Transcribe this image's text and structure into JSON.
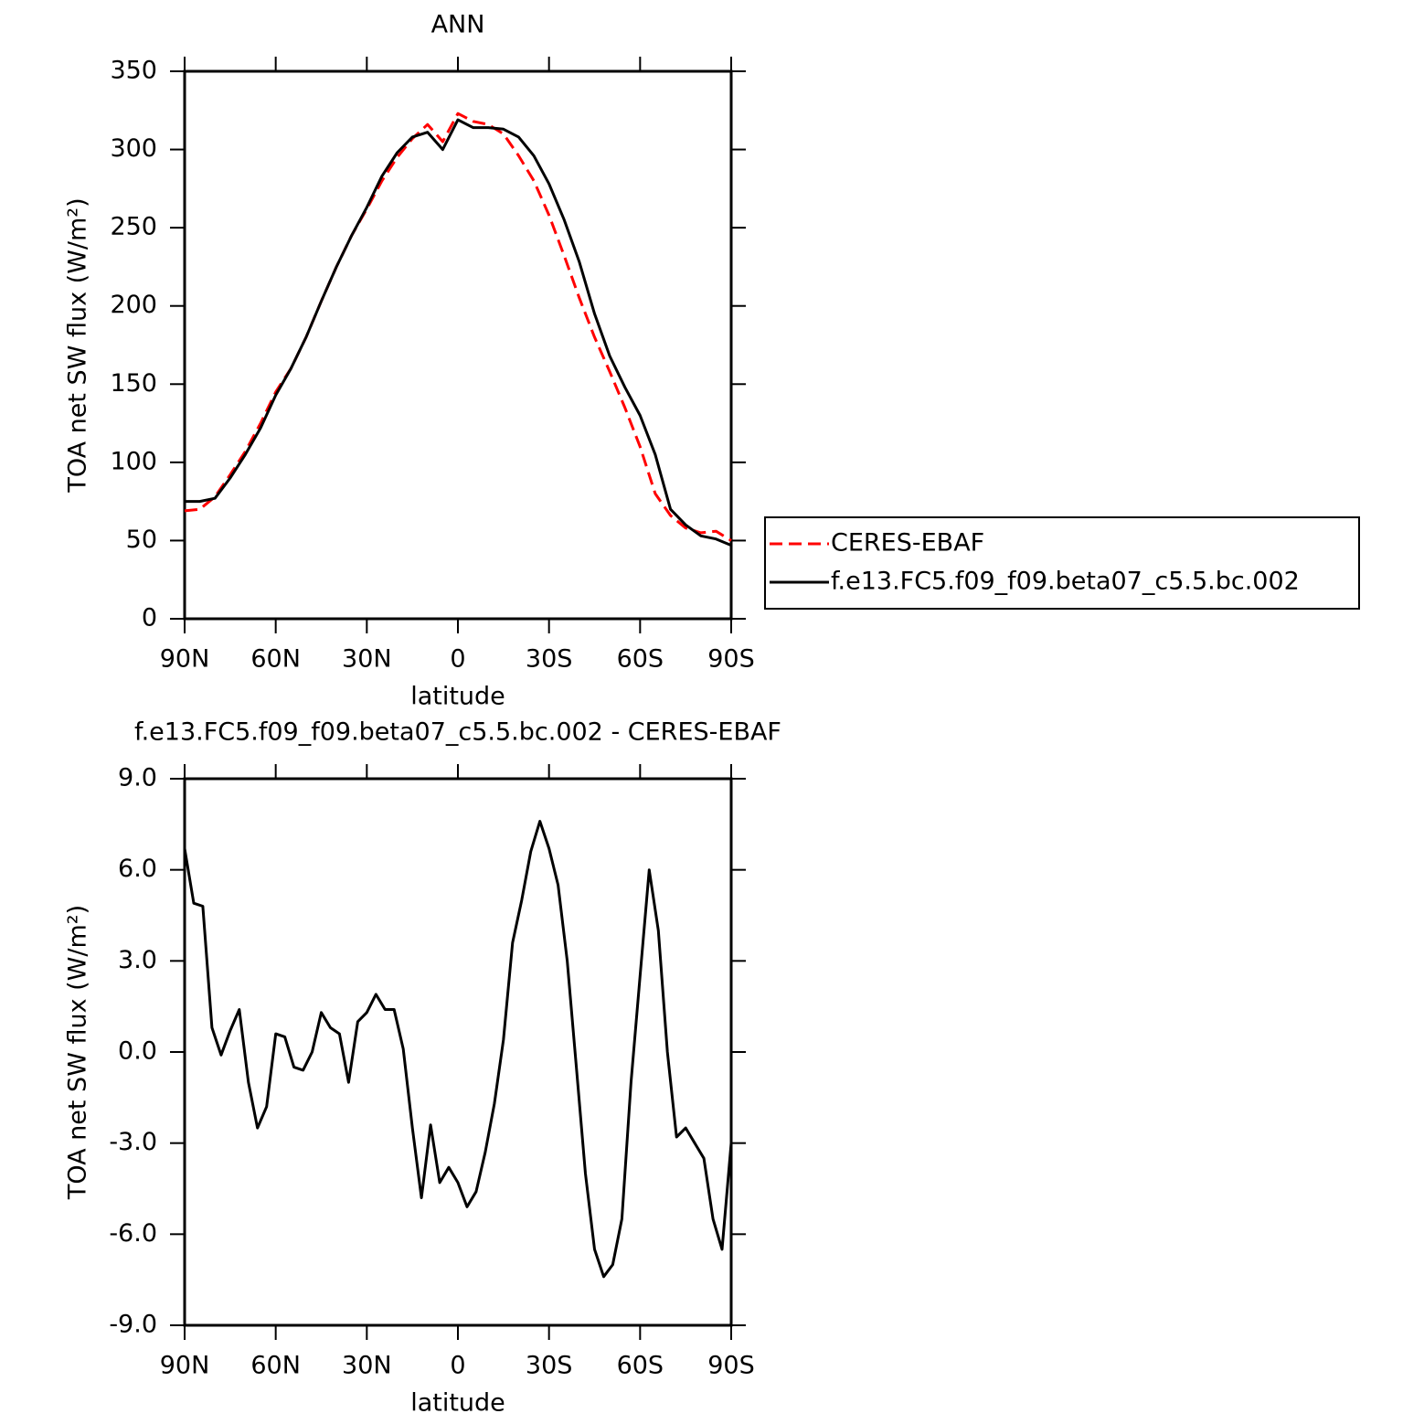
{
  "chart_data": [
    {
      "type": "line",
      "title": "ANN",
      "xlabel": "latitude",
      "ylabel": "TOA net SW flux (W/m²)",
      "x": [
        90,
        85,
        80,
        75,
        70,
        65,
        60,
        55,
        50,
        45,
        40,
        35,
        30,
        25,
        20,
        15,
        10,
        5,
        0,
        -5,
        -10,
        -15,
        -20,
        -25,
        -30,
        -35,
        -40,
        -45,
        -50,
        -55,
        -60,
        -65,
        -70,
        -75,
        -80,
        -85,
        -90
      ],
      "series": [
        {
          "name": "CERES-EBAF",
          "color": "#ff0000",
          "linestyle": "dashed",
          "values": [
            69,
            70,
            78,
            92,
            107,
            125,
            145,
            160,
            180,
            203,
            225,
            245,
            262,
            280,
            295,
            307,
            316,
            305,
            323,
            318,
            316,
            310,
            296,
            280,
            258,
            232,
            205,
            180,
            158,
            135,
            110,
            80,
            66,
            58,
            55,
            56,
            50
          ]
        },
        {
          "name": "f.e13.FC5.f09_f09.beta07_c5.5.bc.002",
          "color": "#000000",
          "linestyle": "solid",
          "values": [
            75,
            75,
            77,
            90,
            105,
            122,
            143,
            160,
            180,
            203,
            225,
            245,
            263,
            283,
            298,
            308,
            311,
            300,
            319,
            314,
            314,
            313,
            308,
            296,
            278,
            255,
            228,
            195,
            168,
            148,
            130,
            105,
            70,
            60,
            53,
            51,
            47
          ]
        }
      ],
      "xlim": [
        90,
        -90
      ],
      "xticks": [
        {
          "value": 90,
          "label": "90N"
        },
        {
          "value": 60,
          "label": "60N"
        },
        {
          "value": 30,
          "label": "30N"
        },
        0,
        {
          "value": -30,
          "label": "30S"
        },
        {
          "value": -60,
          "label": "60S"
        },
        {
          "value": -90,
          "label": "90S"
        }
      ],
      "ylim": [
        0,
        350
      ],
      "yticks": [
        0,
        50,
        100,
        150,
        200,
        250,
        300,
        350
      ],
      "legend": "right"
    },
    {
      "type": "line",
      "title": "f.e13.FC5.f09_f09.beta07_c5.5.bc.002 - CERES-EBAF",
      "xlabel": "latitude",
      "ylabel": "TOA net SW flux (W/m²)",
      "x": [
        90,
        87,
        84,
        81,
        78,
        75,
        72,
        69,
        66,
        63,
        60,
        57,
        54,
        51,
        48,
        45,
        42,
        39,
        36,
        33,
        30,
        27,
        24,
        21,
        18,
        15,
        12,
        9,
        6,
        3,
        0,
        -3,
        -6,
        -9,
        -12,
        -15,
        -18,
        -21,
        -24,
        -27,
        -30,
        -33,
        -36,
        -39,
        -42,
        -45,
        -48,
        -51,
        -54,
        -57,
        -60,
        -63,
        -66,
        -69,
        -72,
        -75,
        -78,
        -81,
        -84,
        -87,
        -90
      ],
      "series": [
        {
          "color": "#000000",
          "linestyle": "solid",
          "values": [
            6.7,
            4.9,
            4.8,
            0.8,
            -0.1,
            0.7,
            1.4,
            -1.0,
            -2.5,
            -1.8,
            0.6,
            0.5,
            -0.5,
            -0.6,
            0.0,
            1.3,
            0.8,
            0.6,
            -1.0,
            1.0,
            1.3,
            1.9,
            1.4,
            1.4,
            0.1,
            -2.5,
            -4.8,
            -2.4,
            -4.3,
            -3.8,
            -4.3,
            -5.1,
            -4.6,
            -3.3,
            -1.7,
            0.4,
            3.6,
            5.0,
            6.6,
            7.6,
            6.7,
            5.5,
            3.0,
            -0.5,
            -4.0,
            -6.5,
            -7.4,
            -7.0,
            -5.5,
            -1.0,
            2.5,
            6.0,
            4.0,
            0.0,
            -2.8,
            -2.5,
            -3.0,
            -3.5,
            -5.5,
            -6.5,
            -3.0
          ]
        }
      ],
      "xlim": [
        90,
        -90
      ],
      "xticks": [
        {
          "value": 90,
          "label": "90N"
        },
        {
          "value": 60,
          "label": "60N"
        },
        {
          "value": 30,
          "label": "30N"
        },
        0,
        {
          "value": -30,
          "label": "30S"
        },
        {
          "value": -60,
          "label": "60S"
        },
        {
          "value": -90,
          "label": "90S"
        }
      ],
      "ylim": [
        -9,
        9
      ],
      "yticks": [
        {
          "value": -9,
          "label": "-9.0"
        },
        {
          "value": -6,
          "label": "-6.0"
        },
        {
          "value": -3,
          "label": "-3.0"
        },
        {
          "value": 0,
          "label": "0.0"
        },
        {
          "value": 3,
          "label": "3.0"
        },
        {
          "value": 6,
          "label": "6.0"
        },
        {
          "value": 9,
          "label": "9.0"
        }
      ]
    }
  ]
}
